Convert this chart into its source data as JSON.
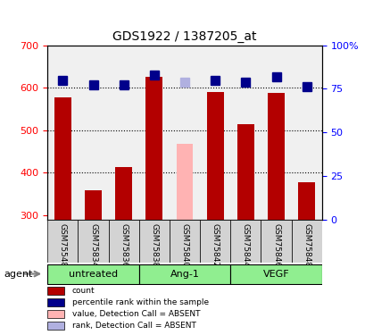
{
  "title": "GDS1922 / 1387205_at",
  "samples": [
    "GSM75548",
    "GSM75834",
    "GSM75836",
    "GSM75838",
    "GSM75840",
    "GSM75842",
    "GSM75844",
    "GSM75846",
    "GSM75848"
  ],
  "bar_values": [
    578,
    358,
    413,
    625,
    468,
    590,
    515,
    588,
    378
  ],
  "bar_absent": [
    false,
    false,
    false,
    false,
    true,
    false,
    false,
    false,
    false
  ],
  "bar_color_normal": "#b30000",
  "bar_color_absent": "#ffb3b3",
  "rank_values": [
    80,
    77,
    77,
    83,
    79,
    80,
    79,
    82,
    76
  ],
  "rank_absent": [
    false,
    false,
    false,
    false,
    true,
    false,
    false,
    false,
    false
  ],
  "rank_color_normal": "#00008b",
  "rank_color_absent": "#b0b0e0",
  "ylim_left": [
    290,
    700
  ],
  "ylim_right": [
    0,
    100
  ],
  "yticks_left": [
    300,
    400,
    500,
    600,
    700
  ],
  "yticks_right": [
    0,
    25,
    50,
    75,
    100
  ],
  "groups": [
    {
      "label": "untreated",
      "indices": [
        0,
        1,
        2
      ],
      "color": "#90ee90"
    },
    {
      "label": "Ang-1",
      "indices": [
        3,
        4,
        5
      ],
      "color": "#90ee90"
    },
    {
      "label": "VEGF",
      "indices": [
        6,
        7,
        8
      ],
      "color": "#90ee90"
    }
  ],
  "agent_label": "agent",
  "background_plot": "#f0f0f0",
  "background_label_row": "#d3d3d3",
  "legend_items": [
    {
      "label": "count",
      "color": "#b30000",
      "type": "rect"
    },
    {
      "label": "percentile rank within the sample",
      "color": "#00008b",
      "type": "rect"
    },
    {
      "label": "value, Detection Call = ABSENT",
      "color": "#ffb3b3",
      "type": "rect"
    },
    {
      "label": "rank, Detection Call = ABSENT",
      "color": "#b0b0e0",
      "type": "rect"
    }
  ]
}
